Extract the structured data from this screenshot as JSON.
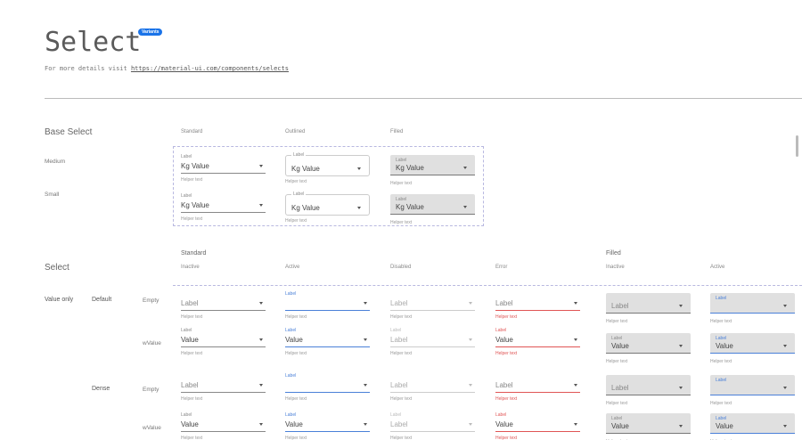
{
  "header": {
    "title": "Select",
    "badge": "Variants",
    "subtitle": "For more details visit ",
    "link": "https://material-ui.com/components/selects"
  },
  "base": {
    "title": "Base Select",
    "columns": [
      "Standard",
      "Outlined",
      "Filled"
    ],
    "rows": [
      "Medium",
      "Small"
    ],
    "label": "Label",
    "value": "Kg  Value",
    "helper": "Helper text"
  },
  "select": {
    "title": "Select",
    "group_standard": "Standard",
    "group_filled": "Filled",
    "columns": [
      "Inactive",
      "Active",
      "Disabled",
      "Error",
      "Inactive",
      "Active"
    ],
    "section": "Value only",
    "densities": [
      "Default",
      "Dense"
    ],
    "states": [
      "Empty",
      "wValue"
    ],
    "label": "Label",
    "value": "Value",
    "helper": "Helper text"
  },
  "colors": {
    "accent": "#4a80d8",
    "error": "#e05555",
    "badge": "#1a73e8"
  }
}
